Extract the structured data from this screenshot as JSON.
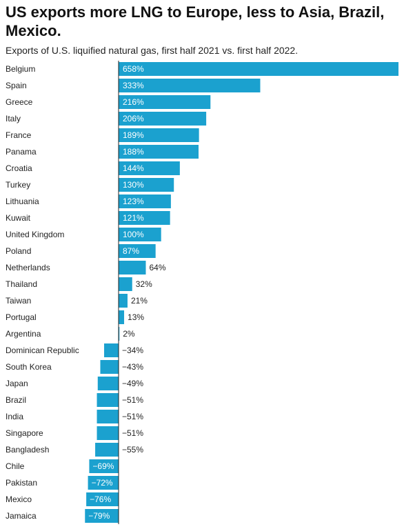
{
  "title": "US exports more LNG to Europe, less to Asia, Brazil, Mexico.",
  "subtitle": "Exports of U.S. liquified natural gas, first half 2021 vs. first half 2022.",
  "colors": {
    "bar": "#1ba1cf",
    "axis": "#222222",
    "text": "#222222",
    "inside_label": "#ffffff"
  },
  "chart_data": {
    "type": "bar",
    "orientation": "horizontal",
    "categories": [
      "Belgium",
      "Spain",
      "Greece",
      "Italy",
      "France",
      "Panama",
      "Croatia",
      "Turkey",
      "Lithuania",
      "Kuwait",
      "United Kingdom",
      "Poland",
      "Netherlands",
      "Thailand",
      "Taiwan",
      "Portugal",
      "Argentina",
      "Dominican Republic",
      "South Korea",
      "Japan",
      "Brazil",
      "India",
      "Singapore",
      "Bangladesh",
      "Chile",
      "Pakistan",
      "Mexico",
      "Jamaica"
    ],
    "values": [
      658,
      333,
      216,
      206,
      189,
      188,
      144,
      130,
      123,
      121,
      100,
      87,
      64,
      32,
      21,
      13,
      2,
      -34,
      -43,
      -49,
      -51,
      -51,
      -51,
      -55,
      -69,
      -72,
      -76,
      -79
    ],
    "labels": [
      "658%",
      "333%",
      "216%",
      "206%",
      "189%",
      "188%",
      "144%",
      "130%",
      "123%",
      "121%",
      "100%",
      "87%",
      "64%",
      "32%",
      "21%",
      "13%",
      "2%",
      "−34%",
      "−43%",
      "−49%",
      "−51%",
      "−51%",
      "−51%",
      "−55%",
      "−69%",
      "−72%",
      "−76%",
      "−79%"
    ],
    "unit": "%",
    "xlim": [
      -79,
      658
    ],
    "grid": false,
    "legend": "none"
  }
}
